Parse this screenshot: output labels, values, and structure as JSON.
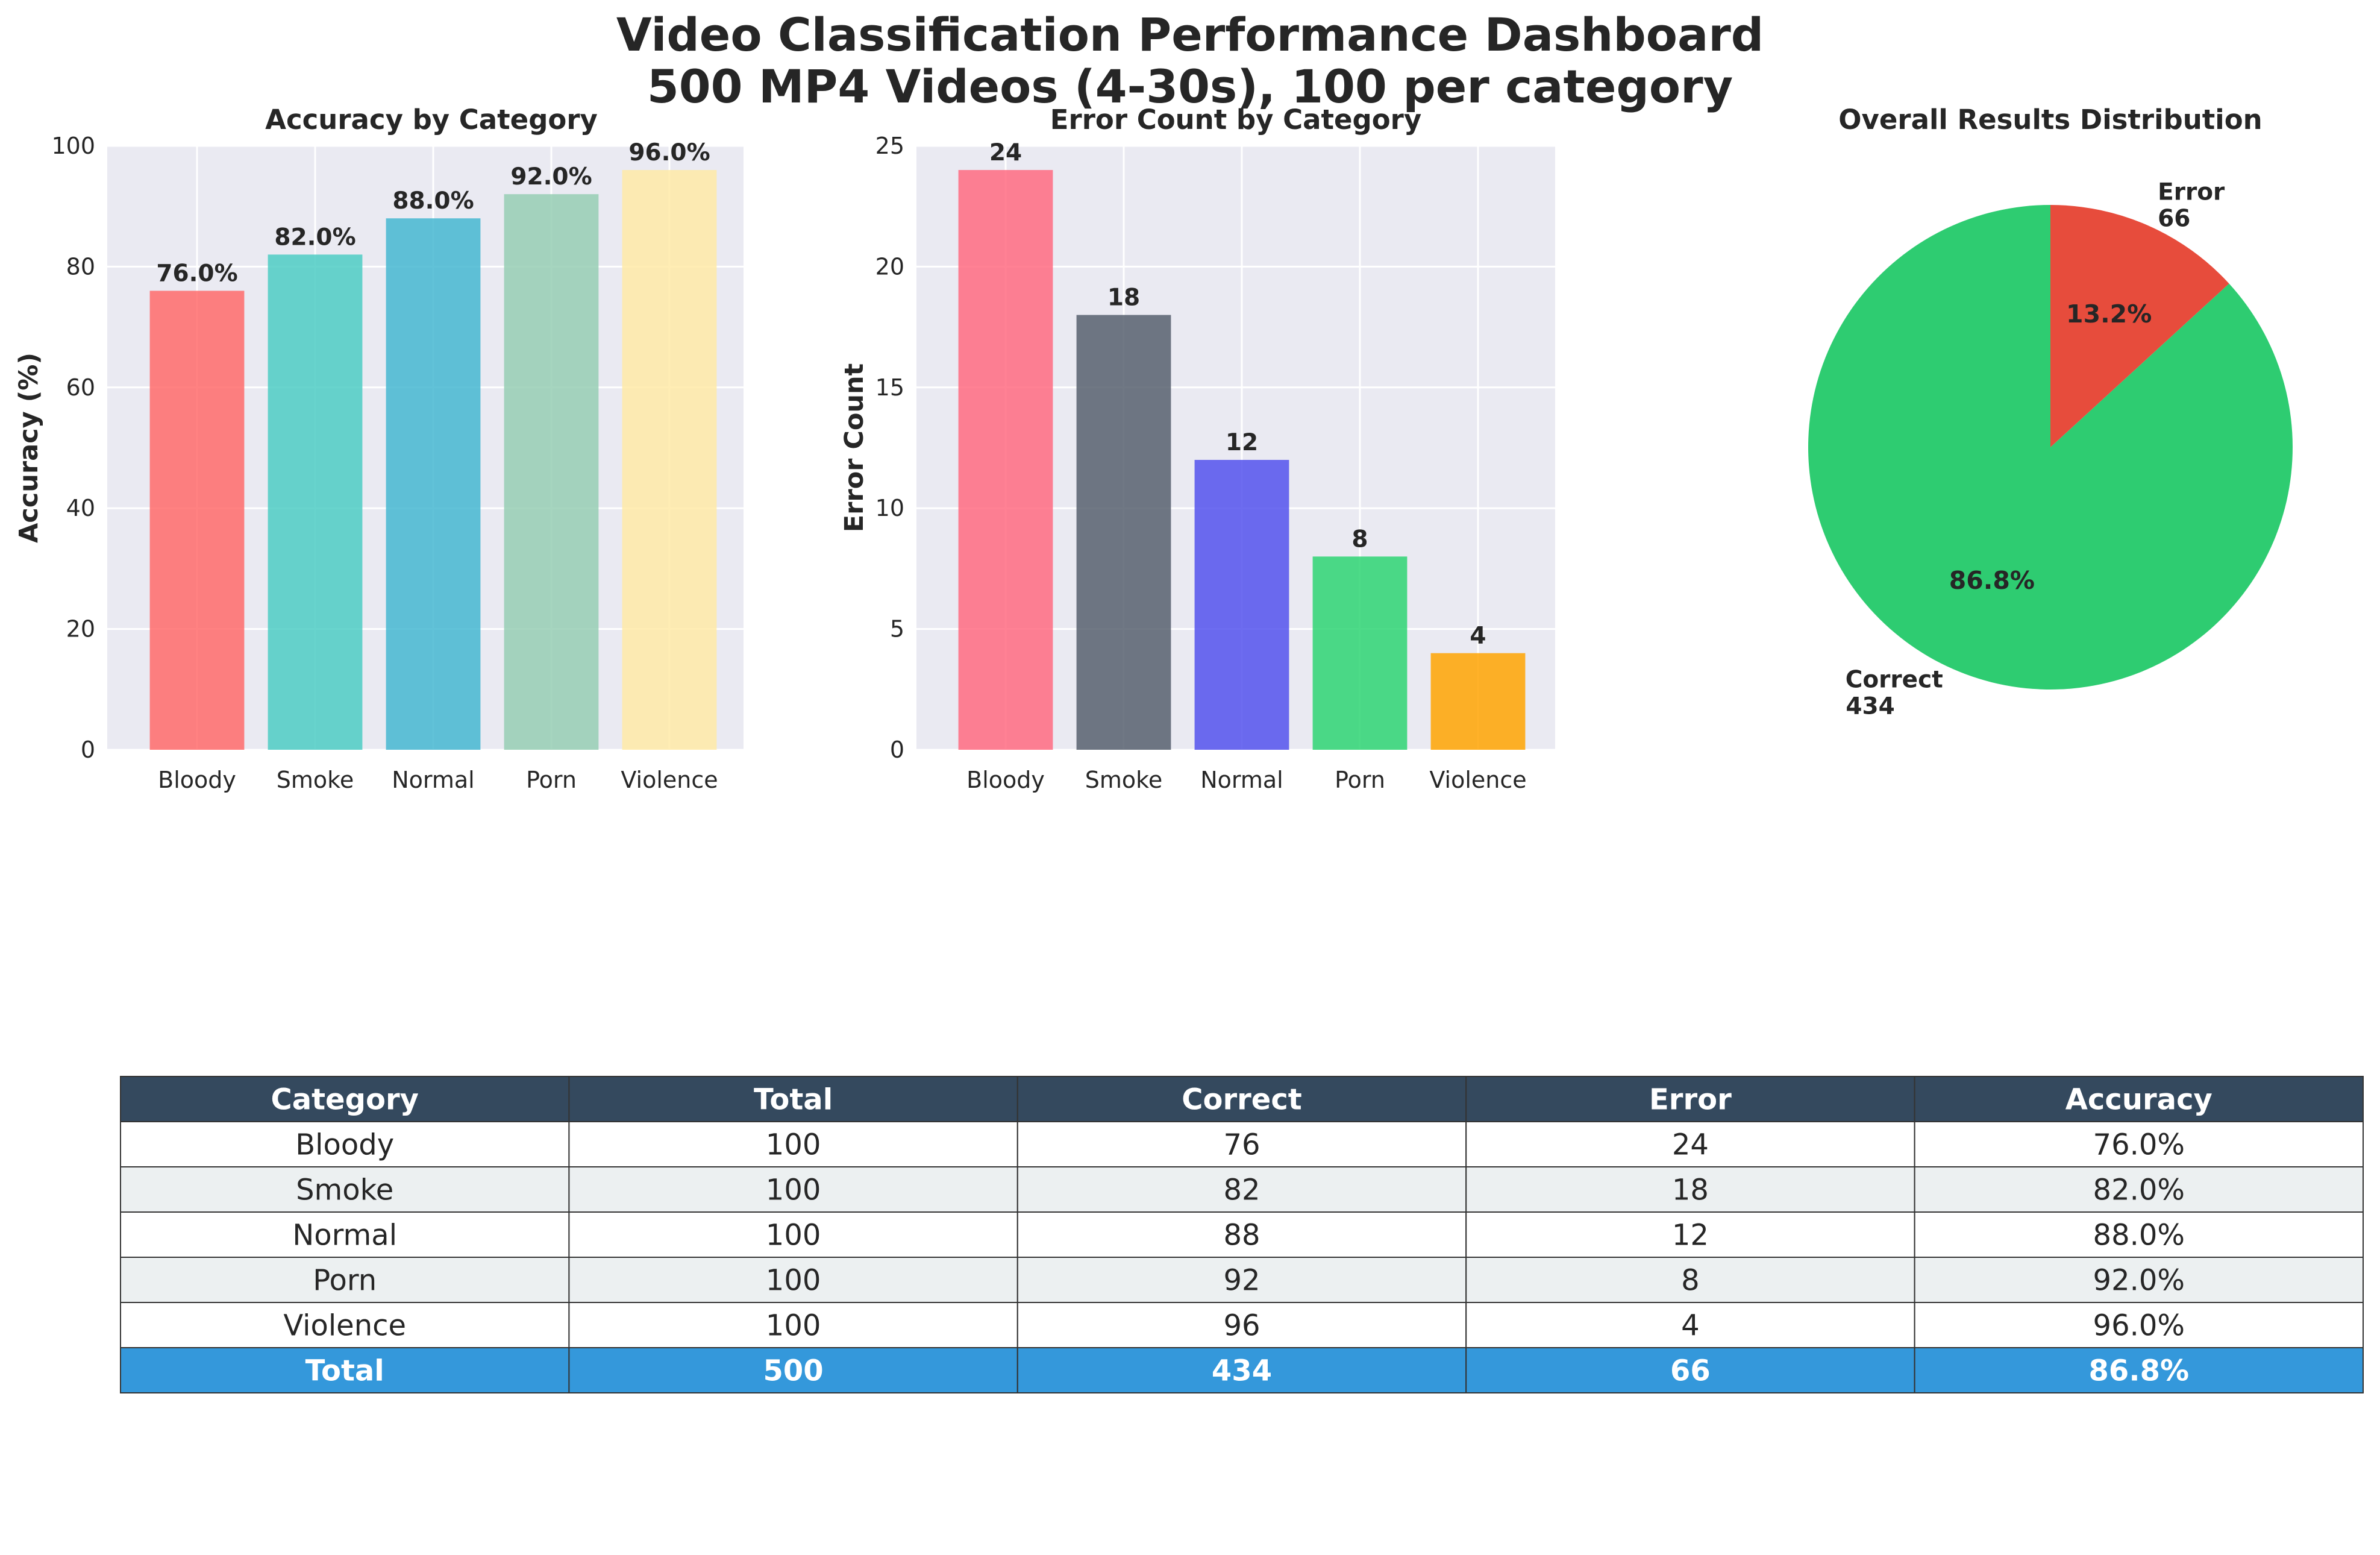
{
  "title_line1": "Video Classification Performance Dashboard",
  "title_line2": "500 MP4 Videos (4-30s), 100 per category",
  "chart_data": [
    {
      "type": "bar",
      "title": "Accuracy by Category",
      "xlabel": "",
      "ylabel": "Accuracy (%)",
      "categories": [
        "Bloody",
        "Smoke",
        "Normal",
        "Porn",
        "Violence"
      ],
      "values": [
        76.0,
        82.0,
        88.0,
        92.0,
        96.0
      ],
      "value_labels": [
        "76.0%",
        "82.0%",
        "88.0%",
        "92.0%",
        "96.0%"
      ],
      "ylim": [
        0,
        100
      ],
      "yticks": [
        0,
        20,
        40,
        60,
        80,
        100
      ],
      "colors": [
        "#ff6b6b",
        "#4ecdc4",
        "#45b7d1",
        "#96ceb4",
        "#ffeaa7"
      ],
      "grid": true
    },
    {
      "type": "bar",
      "title": "Error Count by Category",
      "xlabel": "",
      "ylabel": "Error Count",
      "categories": [
        "Bloody",
        "Smoke",
        "Normal",
        "Porn",
        "Violence"
      ],
      "values": [
        24,
        18,
        12,
        8,
        4
      ],
      "value_labels": [
        "24",
        "18",
        "12",
        "8",
        "4"
      ],
      "ylim": [
        0,
        25
      ],
      "yticks": [
        0,
        5,
        10,
        15,
        20,
        25
      ],
      "colors": [
        "#ff6b81",
        "#57606f",
        "#5352ed",
        "#2ed573",
        "#ffa502"
      ],
      "grid": true
    },
    {
      "type": "pie",
      "title": "Overall Results Distribution",
      "slices": [
        {
          "label": "Correct",
          "count_label": "434",
          "value": 434,
          "pct_label": "86.8%",
          "color": "#2ecc71"
        },
        {
          "label": "Error",
          "count_label": "66",
          "value": 66,
          "pct_label": "13.2%",
          "color": "#e74c3c"
        }
      ]
    },
    {
      "type": "table",
      "columns": [
        "Category",
        "Total",
        "Correct",
        "Error",
        "Accuracy"
      ],
      "rows": [
        [
          "Bloody",
          "100",
          "76",
          "24",
          "76.0%"
        ],
        [
          "Smoke",
          "100",
          "82",
          "18",
          "82.0%"
        ],
        [
          "Normal",
          "100",
          "88",
          "12",
          "88.0%"
        ],
        [
          "Porn",
          "100",
          "92",
          "8",
          "92.0%"
        ],
        [
          "Violence",
          "100",
          "96",
          "4",
          "96.0%"
        ]
      ],
      "total_row": [
        "Total",
        "500",
        "434",
        "66",
        "86.8%"
      ],
      "header_color": "#34495e",
      "total_color": "#3498db",
      "stripe_color": "#ecf0f1"
    }
  ]
}
